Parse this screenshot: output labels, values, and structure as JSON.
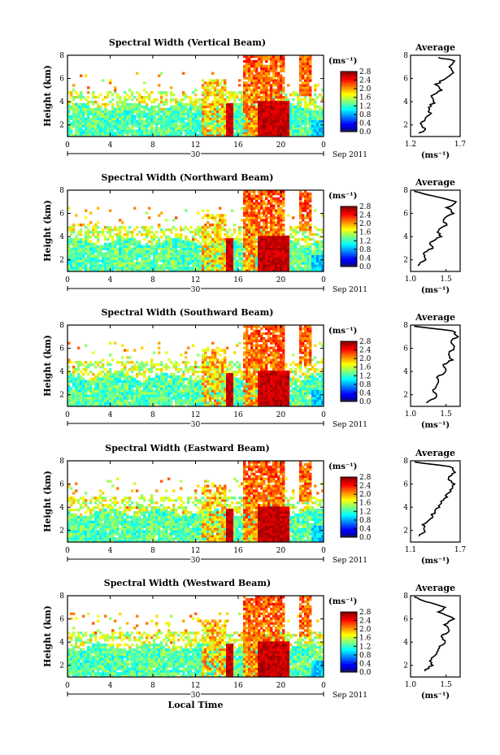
{
  "chart_data": [
    {
      "type": "heatmap",
      "title": "Spectral Width (Vertical Beam)",
      "ylabel": "Height (km)",
      "xlabel": "",
      "date_label": "30",
      "month_label": "Sep 2011",
      "x_ticks": [
        "0",
        "4",
        "8",
        "12",
        "16",
        "20",
        "0"
      ],
      "xlim": [
        0,
        24
      ],
      "y_ticks": [
        "2",
        "4",
        "6",
        "8"
      ],
      "ylim": [
        1,
        8
      ],
      "colorbar": {
        "unit": "(ms⁻¹)",
        "ticks": [
          "2.8",
          "2.4",
          "2.0",
          "1.6",
          "1.2",
          "0.8",
          "0.4",
          "0.0"
        ],
        "range": [
          0,
          2.8
        ]
      },
      "average": {
        "title": "Average",
        "xlabel": "(ms⁻¹)",
        "x_ticks": [
          "1.2",
          "1.7"
        ],
        "xlim": [
          1.2,
          1.7
        ],
        "y_ticks": [
          "2",
          "4",
          "6",
          "8"
        ],
        "profile": [
          [
            1.28,
            1.3
          ],
          [
            1.36,
            1.6
          ],
          [
            1.3,
            2.0
          ],
          [
            1.34,
            2.5
          ],
          [
            1.4,
            3.0
          ],
          [
            1.38,
            3.5
          ],
          [
            1.44,
            4.0
          ],
          [
            1.4,
            4.5
          ],
          [
            1.5,
            5.0
          ],
          [
            1.46,
            5.5
          ],
          [
            1.56,
            6.0
          ],
          [
            1.64,
            6.5
          ],
          [
            1.58,
            7.0
          ],
          [
            1.66,
            7.5
          ],
          [
            1.48,
            7.8
          ]
        ]
      }
    },
    {
      "type": "heatmap",
      "title": "Spectral Width (Northward Beam)",
      "ylabel": "Height (km)",
      "xlabel": "",
      "date_label": "30",
      "month_label": "Sep 2011",
      "x_ticks": [
        "0",
        "4",
        "8",
        "12",
        "16",
        "20",
        "0"
      ],
      "xlim": [
        0,
        24
      ],
      "y_ticks": [
        "2",
        "4",
        "6",
        "8"
      ],
      "ylim": [
        1,
        8
      ],
      "colorbar": {
        "unit": "(ms⁻¹)",
        "ticks": [
          "2.8",
          "2.4",
          "2.0",
          "1.6",
          "1.2",
          "0.8",
          "0.4",
          "0.0"
        ],
        "range": [
          0,
          2.8
        ]
      },
      "average": {
        "title": "Average",
        "xlabel": "(ms⁻¹)",
        "x_ticks": [
          "1.0",
          "1.5"
        ],
        "xlim": [
          1.0,
          1.7
        ],
        "y_ticks": [
          "2",
          "4",
          "6",
          "8"
        ],
        "profile": [
          [
            1.1,
            1.5
          ],
          [
            1.2,
            2.0
          ],
          [
            1.18,
            2.5
          ],
          [
            1.3,
            3.0
          ],
          [
            1.28,
            3.5
          ],
          [
            1.42,
            4.0
          ],
          [
            1.38,
            4.5
          ],
          [
            1.5,
            5.0
          ],
          [
            1.46,
            5.5
          ],
          [
            1.6,
            6.0
          ],
          [
            1.52,
            6.5
          ],
          [
            1.66,
            7.0
          ],
          [
            1.3,
            7.5
          ],
          [
            1.05,
            7.9
          ]
        ]
      }
    },
    {
      "type": "heatmap",
      "title": "Spectral Width (Southward Beam)",
      "ylabel": "Height (km)",
      "xlabel": "",
      "date_label": "30",
      "month_label": "Sep 2011",
      "x_ticks": [
        "0",
        "4",
        "8",
        "12",
        "16",
        "20",
        "0"
      ],
      "xlim": [
        0,
        24
      ],
      "y_ticks": [
        "2",
        "4",
        "6",
        "8"
      ],
      "ylim": [
        1,
        8
      ],
      "colorbar": {
        "unit": "(ms⁻¹)",
        "ticks": [
          "2.8",
          "2.4",
          "2.0",
          "1.6",
          "1.2",
          "0.8",
          "0.4",
          "0.0"
        ],
        "range": [
          0,
          2.8
        ]
      },
      "average": {
        "title": "Average",
        "xlabel": "(ms⁻¹)",
        "x_ticks": [
          "1.0",
          "1.5"
        ],
        "xlim": [
          1.0,
          1.7
        ],
        "y_ticks": [
          "2",
          "4",
          "6",
          "8"
        ],
        "profile": [
          [
            1.22,
            1.3
          ],
          [
            1.36,
            1.8
          ],
          [
            1.32,
            2.4
          ],
          [
            1.4,
            3.0
          ],
          [
            1.38,
            3.5
          ],
          [
            1.5,
            4.0
          ],
          [
            1.46,
            4.6
          ],
          [
            1.58,
            5.0
          ],
          [
            1.54,
            5.6
          ],
          [
            1.62,
            6.0
          ],
          [
            1.56,
            6.6
          ],
          [
            1.66,
            7.0
          ],
          [
            1.6,
            7.5
          ],
          [
            1.05,
            7.9
          ]
        ]
      }
    },
    {
      "type": "heatmap",
      "title": "Spectral Width (Eastward Beam)",
      "ylabel": "Height (km)",
      "xlabel": "",
      "date_label": "30",
      "month_label": "Sep 2011",
      "x_ticks": [
        "0",
        "4",
        "8",
        "12",
        "16",
        "20",
        "0"
      ],
      "xlim": [
        0,
        24
      ],
      "y_ticks": [
        "2",
        "4",
        "6",
        "8"
      ],
      "ylim": [
        1,
        8
      ],
      "colorbar": {
        "unit": "(ms⁻¹)",
        "ticks": [
          "2.8",
          "2.4",
          "2.0",
          "1.6",
          "1.2",
          "0.8",
          "0.4",
          "0.0"
        ],
        "range": [
          0,
          2.8
        ]
      },
      "average": {
        "title": "Average",
        "xlabel": "(ms⁻¹)",
        "x_ticks": [
          "1.1",
          "1.7"
        ],
        "xlim": [
          1.1,
          1.7
        ],
        "y_ticks": [
          "2",
          "4",
          "6",
          "8"
        ],
        "profile": [
          [
            1.2,
            1.5
          ],
          [
            1.28,
            2.0
          ],
          [
            1.26,
            2.5
          ],
          [
            1.34,
            3.0
          ],
          [
            1.38,
            3.5
          ],
          [
            1.44,
            4.0
          ],
          [
            1.48,
            4.5
          ],
          [
            1.54,
            5.0
          ],
          [
            1.58,
            5.5
          ],
          [
            1.62,
            6.0
          ],
          [
            1.56,
            6.5
          ],
          [
            1.64,
            7.0
          ],
          [
            1.58,
            7.5
          ],
          [
            1.15,
            7.9
          ]
        ]
      }
    },
    {
      "type": "heatmap",
      "title": "Spectral Width (Westward Beam)",
      "ylabel": "Height (km)",
      "xlabel": "Local Time",
      "date_label": "30",
      "month_label": "Sep 2011",
      "x_ticks": [
        "0",
        "4",
        "8",
        "12",
        "16",
        "20",
        "0"
      ],
      "xlim": [
        0,
        24
      ],
      "y_ticks": [
        "2",
        "4",
        "6",
        "8"
      ],
      "ylim": [
        1,
        8
      ],
      "colorbar": {
        "unit": "(ms⁻¹)",
        "ticks": [
          "2.8",
          "2.4",
          "2.0",
          "1.6",
          "1.2",
          "0.8",
          "0.4",
          "0.0"
        ],
        "range": [
          0,
          2.8
        ]
      },
      "average": {
        "title": "Average",
        "xlabel": "(ms⁻¹)",
        "x_ticks": [
          "1.0",
          "1.5"
        ],
        "xlim": [
          1.0,
          1.7
        ],
        "y_ticks": [
          "2",
          "4",
          "6",
          "8"
        ],
        "profile": [
          [
            1.2,
            1.5
          ],
          [
            1.3,
            2.0
          ],
          [
            1.28,
            2.5
          ],
          [
            1.36,
            3.0
          ],
          [
            1.4,
            3.5
          ],
          [
            1.5,
            4.0
          ],
          [
            1.42,
            4.5
          ],
          [
            1.56,
            5.0
          ],
          [
            1.48,
            5.5
          ],
          [
            1.62,
            6.0
          ],
          [
            1.4,
            6.6
          ],
          [
            1.5,
            7.0
          ],
          [
            1.2,
            7.5
          ],
          [
            1.05,
            7.9
          ]
        ]
      }
    }
  ]
}
